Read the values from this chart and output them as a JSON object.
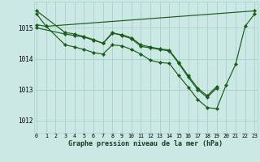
{
  "xlabel": "Graphe pression niveau de la mer (hPa)",
  "background_color": "#cce8e4",
  "grid_color": "#aad4d0",
  "line_color": "#1a5c1a",
  "ylim": [
    1011.6,
    1015.85
  ],
  "xlim": [
    -0.3,
    23.3
  ],
  "yticks": [
    1012,
    1013,
    1014,
    1015
  ],
  "xtick_labels": [
    "0",
    "1",
    "2",
    "3",
    "4",
    "5",
    "6",
    "7",
    "8",
    "9",
    "10",
    "11",
    "12",
    "13",
    "14",
    "15",
    "16",
    "17",
    "18",
    "19",
    "20",
    "21",
    "22",
    "23"
  ],
  "lines": [
    {
      "x": [
        0,
        1,
        23
      ],
      "y": [
        1015.1,
        1015.05,
        1015.55
      ]
    },
    {
      "x": [
        0,
        3,
        4,
        5,
        6,
        7,
        8,
        9,
        10,
        11,
        12,
        13,
        14,
        15,
        16,
        17,
        18,
        19
      ],
      "y": [
        1015.0,
        1014.8,
        1014.75,
        1014.7,
        1014.6,
        1014.5,
        1014.85,
        1014.75,
        1014.65,
        1014.4,
        1014.35,
        1014.3,
        1014.25,
        1013.85,
        1013.4,
        1013.0,
        1012.75,
        1013.05
      ]
    },
    {
      "x": [
        0,
        3,
        4,
        5,
        6,
        7,
        8,
        9,
        10,
        11,
        12,
        13,
        14,
        15,
        16,
        17,
        18,
        19
      ],
      "y": [
        1015.55,
        1014.85,
        1014.8,
        1014.72,
        1014.62,
        1014.5,
        1014.82,
        1014.78,
        1014.68,
        1014.45,
        1014.38,
        1014.32,
        1014.28,
        1013.88,
        1013.45,
        1013.05,
        1012.8,
        1013.1
      ]
    },
    {
      "x": [
        0,
        1,
        3,
        4,
        5,
        6,
        7,
        8,
        9,
        10,
        11,
        12,
        13,
        14,
        15,
        16,
        17,
        18,
        19,
        20,
        21,
        22,
        23
      ],
      "y": [
        1015.45,
        1015.05,
        1014.45,
        1014.38,
        1014.3,
        1014.2,
        1014.15,
        1014.45,
        1014.42,
        1014.3,
        1014.15,
        1013.95,
        1013.88,
        1013.85,
        1013.45,
        1013.08,
        1012.68,
        1012.42,
        1012.38,
        1013.15,
        1013.82,
        1015.05,
        1015.45
      ]
    }
  ]
}
